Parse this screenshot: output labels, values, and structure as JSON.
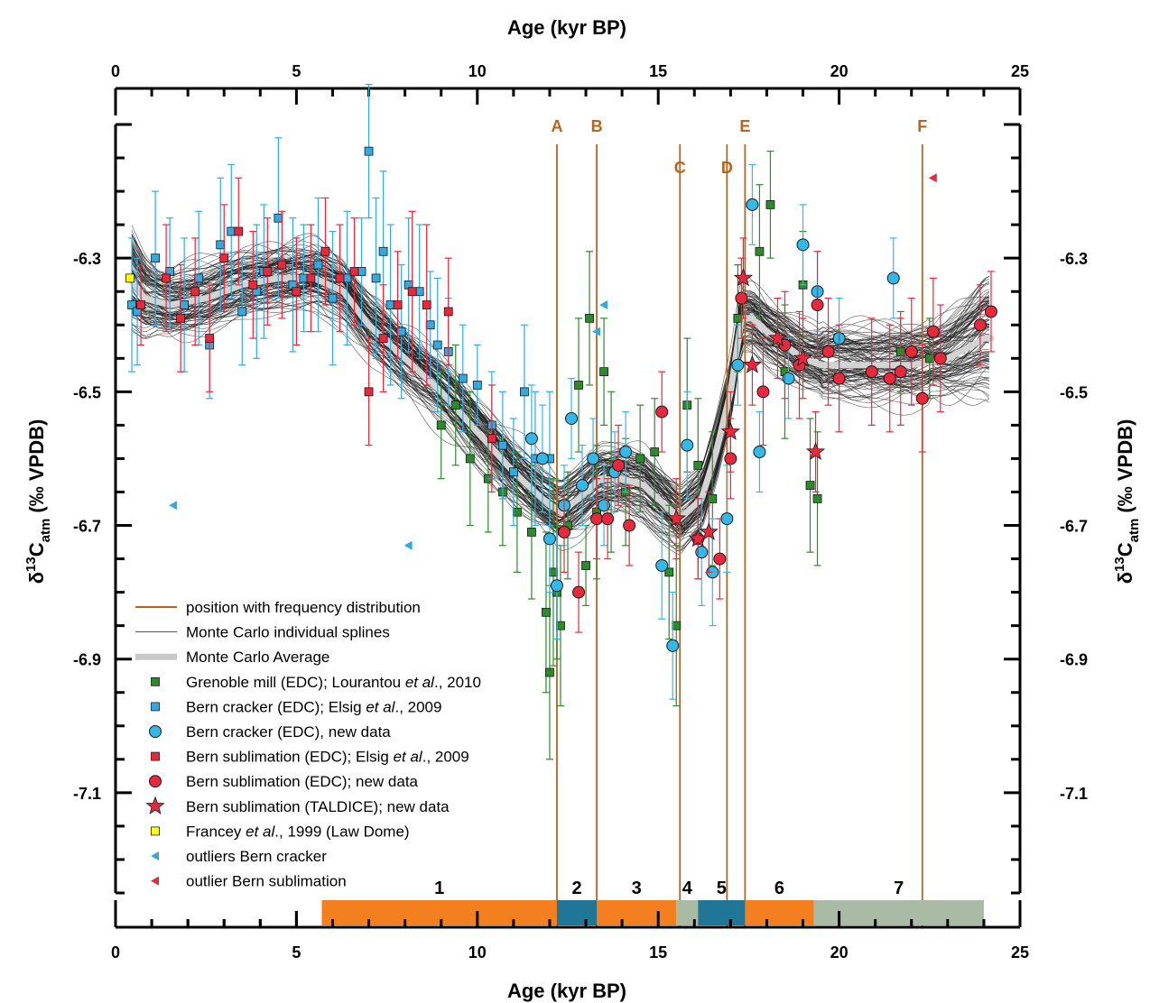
{
  "chart_data": {
    "type": "scatter",
    "xlabel": "Age (kyr BP)",
    "ylabel_parts": [
      "δ",
      "13",
      "C",
      "atm",
      "  (‰  VPDB)"
    ],
    "xlim": [
      0,
      25
    ],
    "ylim": [
      -7.25,
      -6.1
    ],
    "x_ticks": [
      "0",
      "5",
      "10",
      "15",
      "20",
      "25"
    ],
    "y_ticks": [
      "-6.3",
      "-6.5",
      "-6.7",
      "-6.9",
      "-7.1"
    ],
    "grid": false,
    "legend_position": "bottom-left",
    "events": [
      {
        "label": "A",
        "x": 12.2
      },
      {
        "label": "B",
        "x": 13.3
      },
      {
        "label": "C",
        "x": 15.6
      },
      {
        "label": "D",
        "x": 16.9
      },
      {
        "label": "E",
        "x": 17.4
      },
      {
        "label": "F",
        "x": 22.3
      }
    ],
    "phases": [
      {
        "label": "1",
        "start": 5.7,
        "end": 12.2,
        "color": "#f47f1f"
      },
      {
        "label": "2",
        "start": 12.2,
        "end": 13.3,
        "color": "#1f7696"
      },
      {
        "label": "3",
        "start": 13.3,
        "end": 15.5,
        "color": "#f47f1f"
      },
      {
        "label": "4",
        "start": 15.5,
        "end": 16.1,
        "color": "#a9bba5"
      },
      {
        "label": "5",
        "start": 16.1,
        "end": 17.4,
        "color": "#1f7696"
      },
      {
        "label": "6",
        "start": 17.4,
        "end": 19.3,
        "color": "#f47f1f"
      },
      {
        "label": "7",
        "start": 19.3,
        "end": 24.0,
        "color": "#a9bba5"
      }
    ],
    "average_spline": {
      "name": "Monte Carlo Average",
      "x": [
        0.4,
        0.8,
        1.5,
        2.5,
        3.5,
        4.5,
        5.5,
        6.3,
        7.0,
        8.0,
        9.0,
        10.0,
        11.0,
        11.8,
        12.3,
        12.8,
        13.4,
        14.0,
        14.6,
        15.2,
        15.6,
        16.2,
        16.6,
        17.0,
        17.3,
        17.6,
        18.0,
        18.5,
        19.0,
        19.5,
        20.0,
        21.0,
        22.0,
        23.0,
        23.7,
        24.0
      ],
      "y": [
        -6.33,
        -6.36,
        -6.37,
        -6.36,
        -6.34,
        -6.33,
        -6.33,
        -6.35,
        -6.4,
        -6.45,
        -6.5,
        -6.56,
        -6.62,
        -6.66,
        -6.68,
        -6.66,
        -6.63,
        -6.63,
        -6.64,
        -6.67,
        -6.69,
        -6.66,
        -6.59,
        -6.5,
        -6.39,
        -6.39,
        -6.41,
        -6.43,
        -6.45,
        -6.46,
        -6.46,
        -6.46,
        -6.46,
        -6.45,
        -6.43,
        -6.42
      ]
    },
    "series": [
      {
        "name": "Grenoble mill (EDC); Lourantou et al., 2010",
        "marker": "square",
        "color": "#2b8a2b",
        "x": [
          9.0,
          9.4,
          9.8,
          10.3,
          10.7,
          11.1,
          11.5,
          11.9,
          12.0,
          12.1,
          12.2,
          12.3,
          12.5,
          12.8,
          13.0,
          13.1,
          13.3,
          13.5,
          13.7,
          14.1,
          14.5,
          14.9,
          15.3,
          15.5,
          15.8,
          16.1,
          16.5,
          17.2,
          17.8,
          18.1,
          18.5,
          19.0,
          19.2,
          19.4,
          21.7,
          22.5
        ],
        "y": [
          -6.55,
          -6.52,
          -6.6,
          -6.63,
          -6.65,
          -6.68,
          -6.71,
          -6.83,
          -6.92,
          -6.77,
          -6.8,
          -6.85,
          -6.7,
          -6.49,
          -6.76,
          -6.39,
          -6.68,
          -6.47,
          -6.62,
          -6.65,
          -6.6,
          -6.59,
          -6.77,
          -6.85,
          -6.52,
          -6.61,
          -6.66,
          -6.39,
          -6.29,
          -6.22,
          -6.47,
          -6.34,
          -6.64,
          -6.66,
          -6.44,
          -6.45
        ],
        "err": [
          0.08,
          0.09,
          0.1,
          0.08,
          0.08,
          0.09,
          0.1,
          0.12,
          0.13,
          0.14,
          0.1,
          0.12,
          0.08,
          0.1,
          0.06,
          0.1,
          0.1,
          0.08,
          0.12,
          0.08,
          0.08,
          0.08,
          0.1,
          0.12,
          0.1,
          0.1,
          0.1,
          0.08,
          0.1,
          0.08,
          0.1,
          0.08,
          0.1,
          0.1,
          0.06,
          0.06
        ]
      },
      {
        "name": "Bern cracker (EDC); Elsig et al., 2009",
        "marker": "square",
        "color": "#33a9e0",
        "x": [
          0.45,
          0.6,
          1.1,
          1.5,
          1.9,
          2.3,
          2.6,
          2.9,
          3.2,
          3.5,
          3.9,
          4.1,
          4.5,
          4.9,
          5.2,
          5.6,
          6.0,
          6.4,
          6.8,
          7.0,
          7.2,
          7.4,
          7.6,
          7.9,
          8.1,
          8.4,
          8.7,
          8.9,
          9.2,
          9.6,
          10.0,
          10.4,
          10.7,
          11.0,
          11.3,
          11.6,
          12.0
        ],
        "y": [
          -6.37,
          -6.38,
          -6.3,
          -6.32,
          -6.37,
          -6.33,
          -6.43,
          -6.28,
          -6.26,
          -6.38,
          -6.35,
          -6.32,
          -6.24,
          -6.34,
          -6.33,
          -6.31,
          -6.36,
          -6.33,
          -6.32,
          -6.14,
          -6.33,
          -6.29,
          -6.37,
          -6.41,
          -6.34,
          -6.35,
          -6.4,
          -6.43,
          -6.44,
          -6.48,
          -6.49,
          -6.55,
          -6.58,
          -6.62,
          -6.5,
          -6.6,
          -6.6
        ],
        "err": [
          0.1,
          0.08,
          0.1,
          0.08,
          0.1,
          0.1,
          0.08,
          0.1,
          0.1,
          0.08,
          0.1,
          0.1,
          0.12,
          0.1,
          0.08,
          0.1,
          0.1,
          0.1,
          0.08,
          0.1,
          0.12,
          0.12,
          0.12,
          0.1,
          0.1,
          0.1,
          0.08,
          0.1,
          0.08,
          0.08,
          0.06,
          0.08,
          0.08,
          0.08,
          0.1,
          0.1,
          0.1
        ]
      },
      {
        "name": "Bern cracker (EDC), new data",
        "marker": "circle",
        "color": "#33b8e8",
        "x": [
          11.5,
          11.8,
          12.0,
          12.2,
          12.4,
          12.6,
          12.9,
          13.2,
          13.5,
          13.8,
          14.1,
          15.1,
          15.4,
          15.8,
          16.2,
          16.5,
          16.9,
          17.2,
          17.6,
          17.8,
          18.6,
          19.0,
          19.4,
          20.0,
          21.5
        ],
        "y": [
          -6.57,
          -6.6,
          -6.72,
          -6.79,
          -6.67,
          -6.54,
          -6.64,
          -6.6,
          -6.67,
          -6.62,
          -6.59,
          -6.76,
          -6.88,
          -6.58,
          -6.74,
          -6.77,
          -6.69,
          -6.46,
          -6.22,
          -6.59,
          -6.48,
          -6.28,
          -6.35,
          -6.42,
          -6.33
        ],
        "err": [
          0.08,
          0.08,
          0.08,
          0.08,
          0.06,
          0.06,
          0.06,
          0.06,
          0.06,
          0.06,
          0.06,
          0.08,
          0.08,
          0.08,
          0.08,
          0.08,
          0.08,
          0.06,
          0.06,
          0.06,
          0.06,
          0.06,
          0.06,
          0.06,
          0.06
        ]
      },
      {
        "name": "Bern sublimation (EDC); Elsig et al., 2009",
        "marker": "square",
        "color": "#e8283c",
        "x": [
          0.7,
          1.4,
          1.8,
          2.2,
          2.6,
          3.0,
          3.4,
          3.8,
          4.2,
          4.6,
          5.0,
          5.4,
          5.8,
          6.2,
          6.6,
          7.0,
          7.4,
          7.8,
          8.2,
          8.6,
          9.2,
          10.4
        ],
        "y": [
          -6.37,
          -6.33,
          -6.39,
          -6.35,
          -6.42,
          -6.3,
          -6.26,
          -6.34,
          -6.32,
          -6.31,
          -6.35,
          -6.33,
          -6.29,
          -6.33,
          -6.32,
          -6.5,
          -6.42,
          -6.37,
          -6.35,
          -6.37,
          -6.38,
          -6.57
        ],
        "err": [
          0.06,
          0.08,
          0.08,
          0.08,
          0.08,
          0.08,
          0.08,
          0.08,
          0.08,
          0.08,
          0.08,
          0.08,
          0.08,
          0.08,
          0.08,
          0.08,
          0.08,
          0.08,
          0.12,
          0.12,
          0.08,
          0.08
        ]
      },
      {
        "name": "Bern sublimation (EDC); new data",
        "marker": "circle",
        "color": "#e8283c",
        "x": [
          12.4,
          12.8,
          13.3,
          13.6,
          13.9,
          14.2,
          15.1,
          16.1,
          16.7,
          17.0,
          17.3,
          17.9,
          18.5,
          18.9,
          19.4,
          19.7,
          20.0,
          20.9,
          21.4,
          21.7,
          22.0,
          22.3,
          22.6,
          22.8,
          23.9,
          24.2
        ],
        "y": [
          -6.71,
          -6.8,
          -6.69,
          -6.69,
          -6.61,
          -6.7,
          -6.53,
          -6.72,
          -6.75,
          -6.6,
          -6.36,
          -6.5,
          -6.43,
          -6.46,
          -6.37,
          -6.44,
          -6.48,
          -6.47,
          -6.48,
          -6.47,
          -6.44,
          -6.51,
          -6.41,
          -6.45,
          -6.4,
          -6.38
        ],
        "err": [
          0.06,
          0.06,
          0.06,
          0.06,
          0.06,
          0.06,
          0.06,
          0.06,
          0.06,
          0.06,
          0.06,
          0.08,
          0.08,
          0.08,
          0.08,
          0.08,
          0.08,
          0.08,
          0.08,
          0.08,
          0.08,
          0.08,
          0.08,
          0.08,
          0.06,
          0.06
        ]
      },
      {
        "name": "Bern sublimation (TALDICE); new data",
        "marker": "star",
        "color": "#e8283c",
        "x": [
          15.5,
          16.1,
          16.4,
          17.0,
          17.35,
          17.6,
          18.3,
          19.0,
          19.35
        ],
        "y": [
          -6.69,
          -6.72,
          -6.71,
          -6.56,
          -6.33,
          -6.46,
          -6.42,
          -6.45,
          -6.59
        ],
        "err": [
          0.06,
          0.06,
          0.06,
          0.06,
          0.06,
          0.06,
          0.06,
          0.06,
          0.06
        ]
      },
      {
        "name": "Francey et al., 1999 (Law Dome)",
        "marker": "square",
        "color": "#ffff00",
        "x": [
          0.4
        ],
        "y": [
          -6.33
        ],
        "err": [
          0
        ]
      },
      {
        "name": "outliers Bern cracker",
        "marker": "triangle-left",
        "color": "#33a9e0",
        "x": [
          1.6,
          8.1,
          13.5,
          13.3
        ],
        "y": [
          -6.67,
          -6.73,
          -6.37,
          -6.41
        ],
        "err": [
          0,
          0,
          0,
          0
        ]
      },
      {
        "name": "outlier Bern sublimation",
        "marker": "triangle-left",
        "color": "#e8283c",
        "x": [
          22.6
        ],
        "y": [
          -6.18
        ],
        "err": [
          0
        ]
      }
    ],
    "legend": [
      {
        "key": "freq",
        "symbol": "line-orange",
        "label": "position with frequency distribution"
      },
      {
        "key": "mc",
        "symbol": "line-thin",
        "label": "Monte Carlo individual splines"
      },
      {
        "key": "avg",
        "symbol": "line-thick",
        "label": "Monte Carlo Average"
      },
      {
        "key": "gren",
        "symbol": "square",
        "color": "#2b8a2b",
        "label": "Grenoble mill (EDC); Lourantou ",
        "label_em": "et al",
        "label_tail": "., 2010"
      },
      {
        "key": "bc09",
        "symbol": "square",
        "color": "#33a9e0",
        "label": "Bern cracker (EDC); Elsig ",
        "label_em": "et al",
        "label_tail": "., 2009"
      },
      {
        "key": "bcnew",
        "symbol": "circle",
        "color": "#33b8e8",
        "label": "Bern cracker (EDC), new data"
      },
      {
        "key": "bs09",
        "symbol": "square",
        "color": "#e8283c",
        "label": "Bern sublimation (EDC); Elsig ",
        "label_em": "et al",
        "label_tail": "., 2009"
      },
      {
        "key": "bsnew",
        "symbol": "circle",
        "color": "#e8283c",
        "label": "Bern sublimation (EDC); new data"
      },
      {
        "key": "tal",
        "symbol": "star",
        "color": "#e8283c",
        "label": "Bern sublimation (TALDICE); new data"
      },
      {
        "key": "fr",
        "symbol": "square",
        "color": "#ffff00",
        "label": "Francey ",
        "label_em": "et al",
        "label_tail": "., 1999 (Law Dome)"
      },
      {
        "key": "obc",
        "symbol": "triangle-left",
        "color": "#33a9e0",
        "label": "outliers Bern cracker"
      },
      {
        "key": "obs",
        "symbol": "triangle-left",
        "color": "#e8283c",
        "label": "outlier Bern sublimation"
      }
    ]
  }
}
